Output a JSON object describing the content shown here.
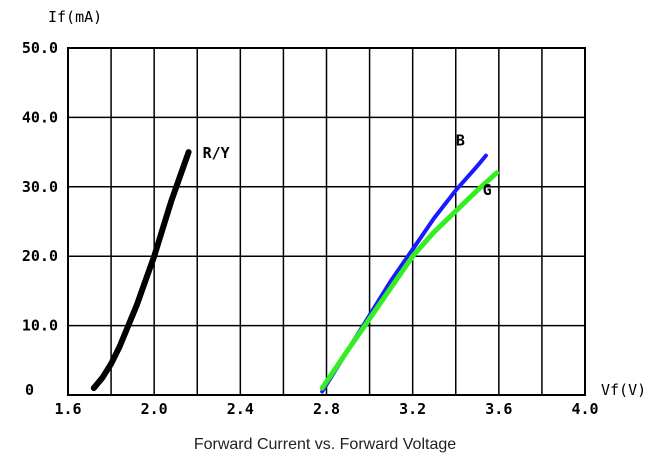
{
  "chart_data": {
    "type": "line",
    "title": "Forward Current vs. Forward Voltage",
    "xlabel": "Vf(V)",
    "ylabel": "If(mA)",
    "xlim": [
      1.6,
      4.0
    ],
    "ylim": [
      0,
      50
    ],
    "x_ticks": [
      1.6,
      1.8,
      2.0,
      2.2,
      2.4,
      2.6,
      2.8,
      3.0,
      3.2,
      3.4,
      3.6,
      3.8,
      4.0
    ],
    "x_tick_labels": [
      "1.6",
      "2.0",
      "2.4",
      "2.8",
      "3.2",
      "3.6",
      "4.0"
    ],
    "x_tick_label_values": [
      1.6,
      2.0,
      2.4,
      2.8,
      3.2,
      3.6,
      4.0
    ],
    "y_ticks": [
      0,
      10,
      20,
      30,
      40,
      50
    ],
    "y_tick_labels": [
      "0",
      "10.0",
      "20.0",
      "30.0",
      "40.0",
      "50.0"
    ],
    "grid": true,
    "series": [
      {
        "name": "R/Y",
        "color": "#000000",
        "x": [
          1.72,
          1.76,
          1.8,
          1.84,
          1.88,
          1.92,
          1.96,
          2.0,
          2.04,
          2.08,
          2.12,
          2.16
        ],
        "y": [
          1.0,
          2.5,
          4.5,
          7.0,
          10.0,
          13.0,
          16.5,
          20.0,
          24.0,
          28.0,
          31.5,
          35.0
        ]
      },
      {
        "name": "B",
        "color": "#1a1aff",
        "x": [
          2.78,
          2.9,
          3.0,
          3.1,
          3.2,
          3.3,
          3.4,
          3.5,
          3.54
        ],
        "y": [
          0.5,
          6.5,
          11.5,
          16.5,
          21.0,
          25.5,
          29.5,
          33.0,
          34.5
        ]
      },
      {
        "name": "G",
        "color": "#33ee22",
        "x": [
          2.78,
          2.9,
          3.0,
          3.1,
          3.2,
          3.3,
          3.4,
          3.5,
          3.59
        ],
        "y": [
          1.0,
          6.5,
          11.0,
          15.5,
          20.0,
          23.5,
          26.5,
          29.5,
          32.0
        ]
      }
    ]
  }
}
